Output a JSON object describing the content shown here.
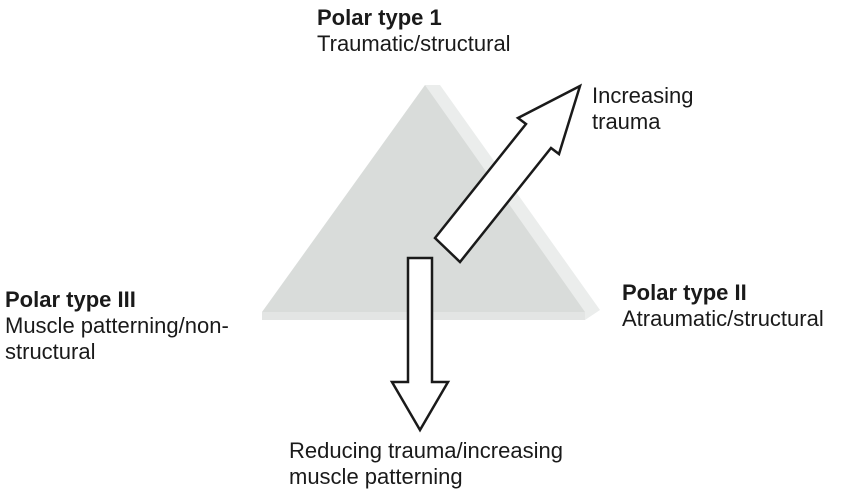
{
  "poles": {
    "type_1": {
      "title": "Polar type 1",
      "description": "Traumatic/structural"
    },
    "type_2": {
      "title": "Polar type II",
      "description": "Atraumatic/structural"
    },
    "type_3": {
      "title": "Polar type III",
      "description_line1": "Muscle patterning/non-",
      "description_line2": "structural"
    }
  },
  "arrows": {
    "increasing": {
      "line1": "Increasing",
      "line2": "trauma"
    },
    "reducing": {
      "line1": "Reducing trauma/increasing",
      "line2": "muscle patterning"
    }
  },
  "colors": {
    "triangle_face": "#d9dcda",
    "triangle_edge": "#ebedec",
    "arrow_fill": "#ffffff",
    "arrow_stroke": "#1a1a1a",
    "text": "#1a1a1a"
  }
}
